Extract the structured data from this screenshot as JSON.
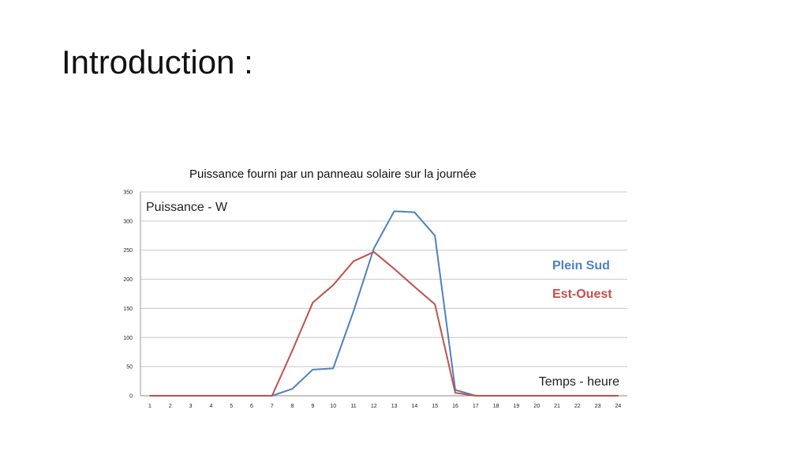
{
  "slide": {
    "title": "Introduction :",
    "caption": "Puissance fourni par un panneau solaire sur la journée"
  },
  "chart_data": {
    "type": "line",
    "title": "Puissance fourni par un panneau solaire sur la journée",
    "ylabel": "Puissance - W",
    "xlabel": "Temps - heure",
    "x": [
      1,
      2,
      3,
      4,
      5,
      6,
      7,
      8,
      9,
      10,
      11,
      12,
      13,
      14,
      15,
      16,
      17,
      18,
      19,
      20,
      21,
      22,
      23,
      24
    ],
    "ylim": [
      0,
      350
    ],
    "yticks": [
      0,
      50,
      100,
      150,
      200,
      250,
      300,
      350
    ],
    "grid": true,
    "legend": "right",
    "series": [
      {
        "name": "Plein Sud",
        "color": "#4F81BD",
        "values": [
          0,
          0,
          0,
          0,
          0,
          0,
          0,
          12,
          45,
          47,
          145,
          253,
          317,
          315,
          275,
          10,
          0,
          0,
          0,
          0,
          0,
          0,
          0,
          0
        ]
      },
      {
        "name": "Est-Ouest",
        "color": "#C0504D",
        "values": [
          0,
          0,
          0,
          0,
          0,
          0,
          0,
          78,
          160,
          190,
          231,
          247,
          218,
          187,
          157,
          5,
          0,
          0,
          0,
          0,
          0,
          0,
          0,
          0
        ]
      }
    ]
  }
}
